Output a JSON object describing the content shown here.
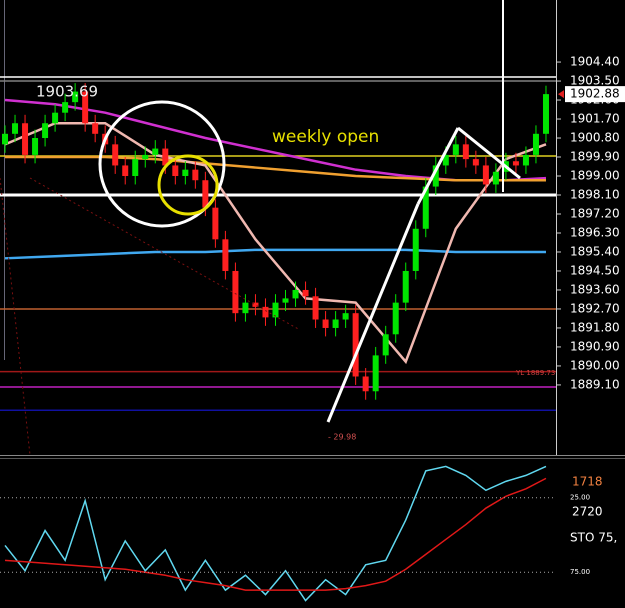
{
  "chart_data": [
    {
      "type": "candlestick",
      "x": [
        0,
        1,
        2,
        3,
        4,
        5,
        6,
        7,
        8,
        9,
        10,
        11,
        12,
        13,
        14,
        15,
        16,
        17,
        18,
        19,
        20,
        21,
        22,
        23,
        24,
        25,
        26,
        27,
        28,
        29,
        30,
        31,
        32,
        33,
        34,
        35,
        36,
        37,
        38,
        39,
        40,
        41,
        42,
        43,
        44,
        45,
        46,
        47,
        48,
        49,
        50,
        51,
        52,
        53,
        54
      ],
      "xlim": [
        -0.5,
        55
      ],
      "open": [
        1900.5,
        1901.0,
        1901.5,
        1900.0,
        1900.8,
        1901.5,
        1902.0,
        1902.5,
        1903.0,
        1901.5,
        1901.0,
        1900.5,
        1899.5,
        1899.0,
        1899.8,
        1900.0,
        1900.3,
        1899.5,
        1899.0,
        1899.3,
        1898.8,
        1897.5,
        1896.0,
        1894.5,
        1892.5,
        1893.0,
        1892.8,
        1892.3,
        1893.0,
        1893.2,
        1893.6,
        1893.3,
        1892.2,
        1891.8,
        1892.2,
        1892.5,
        1889.5,
        1888.8,
        1890.5,
        1891.5,
        1893.0,
        1894.5,
        1896.5,
        1898.5,
        1899.5,
        1900.0,
        1900.5,
        1899.8,
        1899.5,
        1898.6,
        1899.2,
        1899.7,
        1899.5,
        1900.0,
        1901.0
      ],
      "high": [
        1901.4,
        1901.9,
        1901.9,
        1901.2,
        1901.9,
        1902.4,
        1902.9,
        1903.4,
        1903.4,
        1901.9,
        1901.4,
        1900.9,
        1899.9,
        1900.2,
        1900.4,
        1900.7,
        1900.7,
        1899.9,
        1899.7,
        1899.7,
        1899.2,
        1897.9,
        1896.4,
        1894.9,
        1893.4,
        1893.4,
        1893.2,
        1893.4,
        1893.6,
        1894.0,
        1894.0,
        1893.7,
        1892.6,
        1892.6,
        1892.9,
        1892.9,
        1889.9,
        1890.9,
        1891.9,
        1893.4,
        1894.9,
        1896.9,
        1898.9,
        1899.9,
        1900.4,
        1900.9,
        1900.9,
        1900.2,
        1899.9,
        1899.6,
        1900.1,
        1900.1,
        1900.4,
        1901.4,
        1903.28
      ],
      "low": [
        1900.1,
        1900.6,
        1899.6,
        1899.6,
        1900.4,
        1901.1,
        1901.6,
        1902.1,
        1901.1,
        1900.6,
        1900.1,
        1899.1,
        1898.6,
        1898.6,
        1899.4,
        1899.6,
        1899.1,
        1898.6,
        1898.6,
        1898.4,
        1897.1,
        1895.6,
        1894.1,
        1892.1,
        1892.1,
        1892.4,
        1891.9,
        1891.9,
        1892.6,
        1892.8,
        1892.9,
        1891.8,
        1891.4,
        1891.4,
        1891.8,
        1889.1,
        1888.4,
        1888.4,
        1890.1,
        1891.1,
        1892.6,
        1894.1,
        1896.1,
        1898.1,
        1899.1,
        1899.6,
        1899.4,
        1899.1,
        1898.2,
        1898.2,
        1898.8,
        1899.1,
        1899.1,
        1899.6,
        1900.6
      ],
      "close": [
        1901.0,
        1901.5,
        1900.0,
        1900.8,
        1901.5,
        1902.0,
        1902.5,
        1903.0,
        1901.5,
        1901.0,
        1900.5,
        1899.5,
        1899.0,
        1899.8,
        1900.0,
        1900.3,
        1899.5,
        1899.0,
        1899.3,
        1898.8,
        1897.5,
        1896.0,
        1894.5,
        1892.5,
        1893.0,
        1892.8,
        1892.3,
        1893.0,
        1893.2,
        1893.6,
        1893.3,
        1892.2,
        1891.8,
        1892.2,
        1892.5,
        1889.5,
        1888.8,
        1890.5,
        1891.5,
        1893.0,
        1894.5,
        1896.5,
        1898.5,
        1899.5,
        1900.0,
        1900.5,
        1899.8,
        1899.5,
        1898.6,
        1899.2,
        1899.7,
        1899.5,
        1900.0,
        1901.0,
        1902.88
      ],
      "up_color": "#00e600",
      "down_color": "#ff2020",
      "ylim": [
        1885.78,
        1907.34
      ],
      "yticks": [
        {
          "value": 1904.4,
          "label": "1904.40"
        },
        {
          "value": 1903.5,
          "label": "1903.50"
        },
        {
          "value": 1902.6,
          "label": "1902.60"
        },
        {
          "value": 1901.7,
          "label": "1901.70"
        },
        {
          "value": 1900.8,
          "label": "1900.80"
        },
        {
          "value": 1899.9,
          "label": "1899.90"
        },
        {
          "value": 1899,
          "label": "1899.00"
        },
        {
          "value": 1898.1,
          "label": "1898.10"
        },
        {
          "value": 1897.2,
          "label": "1897.20"
        },
        {
          "value": 1896.3,
          "label": "1896.30"
        },
        {
          "value": 1895.4,
          "label": "1895.40"
        },
        {
          "value": 1894.5,
          "label": "1894.50"
        },
        {
          "value": 1893.6,
          "label": "1893.60"
        },
        {
          "value": 1892.7,
          "label": "1892.70"
        },
        {
          "value": 1891.8,
          "label": "1891.80"
        },
        {
          "value": 1890.9,
          "label": "1890.90"
        },
        {
          "value": 1890,
          "label": "1890.00"
        },
        {
          "value": 1889.1,
          "label": "1889.10"
        }
      ],
      "series": [
        {
          "x": [
            0,
            5,
            10,
            15,
            20,
            25,
            30,
            35,
            40,
            45,
            50,
            54
          ],
          "values": [
            1902.6,
            1902.4,
            1902.0,
            1901.4,
            1900.8,
            1900.3,
            1899.8,
            1899.3,
            1899.0,
            1898.8,
            1898.8,
            1898.9
          ],
          "color": "#d030d0"
        },
        {
          "x": [
            0,
            5,
            10,
            15,
            20,
            25,
            30,
            35,
            40,
            45,
            50,
            54
          ],
          "values": [
            1899.9,
            1899.9,
            1899.9,
            1899.8,
            1899.6,
            1899.4,
            1899.2,
            1899.0,
            1898.9,
            1898.8,
            1898.8,
            1898.8
          ],
          "color": "#f0a030"
        },
        {
          "x": [
            0,
            5,
            10,
            15,
            20,
            25,
            30,
            35,
            40,
            45,
            50,
            54
          ],
          "values": [
            1895.1,
            1895.2,
            1895.3,
            1895.4,
            1895.4,
            1895.5,
            1895.5,
            1895.5,
            1895.5,
            1895.4,
            1895.4,
            1895.4
          ],
          "color": "#40a8f0"
        },
        {
          "x": [
            0,
            5,
            10,
            15,
            20,
            25,
            30,
            35,
            40,
            45,
            50,
            54
          ],
          "values": [
            1900.5,
            1901.5,
            1901.5,
            1900.0,
            1899.5,
            1896.0,
            1893.2,
            1893.0,
            1890.2,
            1896.5,
            1899.8,
            1900.5
          ],
          "color": "#f0b8b0"
        }
      ],
      "levels": [
        {
          "value": 1903.69,
          "label": "1903.69",
          "color": "#ffffff"
        },
        {
          "value": 1903.5,
          "color": "#808080"
        },
        {
          "value": 1899.95,
          "color": "#e0d020"
        },
        {
          "value": 1898.1,
          "color": "#ffffff"
        },
        {
          "value": 1892.7,
          "color": "#c06030"
        },
        {
          "value": 1889.73,
          "label": "YL 1889.73",
          "color": "#a01818"
        },
        {
          "value": 1889,
          "color": "#c020c0"
        },
        {
          "value": 1887.9,
          "color": "#1010a0"
        }
      ],
      "last_price": 1902.88,
      "annotations": [
        "weekly open",
        "- 29.98"
      ]
    },
    {
      "type": "line",
      "x": [
        0,
        2,
        4,
        6,
        8,
        10,
        12,
        14,
        16,
        18,
        20,
        22,
        24,
        26,
        28,
        30,
        32,
        34,
        36,
        38,
        40,
        42,
        44,
        46,
        48,
        50,
        52,
        54
      ],
      "xlim": [
        -0.5,
        55
      ],
      "ylim": [
        99,
        -1
      ],
      "yticks": [
        {
          "value": 25,
          "label": "25.00"
        },
        {
          "value": 75,
          "label": "75.00"
        }
      ],
      "series": [
        {
          "values": [
            57,
            74,
            47,
            67,
            27,
            80,
            54,
            74,
            60,
            87,
            67,
            87,
            77,
            90,
            74,
            94,
            80,
            90,
            70,
            67,
            40,
            7,
            4,
            10,
            20,
            14,
            10,
            4
          ],
          "color": "#60d8f0"
        },
        {
          "values": [
            67,
            68,
            69,
            70,
            71,
            72,
            73,
            75,
            77,
            80,
            82,
            84,
            87,
            87,
            87,
            87,
            87,
            86,
            84,
            81,
            73,
            63,
            53,
            43,
            32,
            24,
            19,
            12
          ],
          "color": "#e01818"
        }
      ],
      "labels": [
        "1718",
        "2720",
        "STO 75,"
      ]
    }
  ]
}
